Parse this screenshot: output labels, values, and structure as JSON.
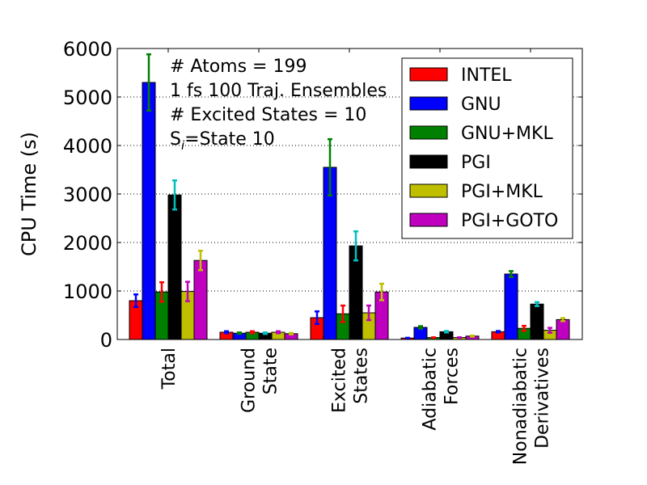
{
  "chart_data": {
    "type": "bar",
    "ylabel": "CPU Time (s)",
    "ylim": [
      0,
      6000
    ],
    "yticks": [
      0,
      1000,
      2000,
      3000,
      4000,
      5000,
      6000
    ],
    "grid": "horizontal dotted",
    "legend_position": "top-right",
    "categories": [
      [
        "Total"
      ],
      [
        "Ground",
        "State"
      ],
      [
        "Excited",
        "States"
      ],
      [
        "Adiabatic",
        "Forces"
      ],
      [
        "Nonadiabatic",
        "Derivatives"
      ]
    ],
    "series": [
      {
        "name": "INTEL",
        "color": "#ff0000",
        "errcolor": "#0000ff",
        "values": [
          800,
          150,
          450,
          30,
          160
        ],
        "errors": [
          130,
          20,
          130,
          5,
          15
        ]
      },
      {
        "name": "GNU",
        "color": "#0000ff",
        "errcolor": "#008000",
        "values": [
          5300,
          130,
          3550,
          250,
          1350
        ],
        "errors": [
          580,
          15,
          580,
          25,
          60
        ]
      },
      {
        "name": "GNU+MKL",
        "color": "#008000",
        "errcolor": "#ff0000",
        "values": [
          980,
          150,
          530,
          40,
          230
        ],
        "errors": [
          200,
          20,
          170,
          5,
          50
        ]
      },
      {
        "name": "PGI",
        "color": "#000000",
        "errcolor": "#00bfbf",
        "values": [
          2980,
          130,
          1930,
          160,
          730
        ],
        "errors": [
          300,
          15,
          300,
          15,
          40
        ]
      },
      {
        "name": "PGI+MKL",
        "color": "#bfbf00",
        "errcolor": "#bf00bf",
        "values": [
          990,
          150,
          550,
          40,
          190
        ],
        "errors": [
          200,
          20,
          150,
          5,
          50
        ]
      },
      {
        "name": "PGI+GOTO",
        "color": "#bf00bf",
        "errcolor": "#bfbf00",
        "values": [
          1630,
          120,
          980,
          70,
          410
        ],
        "errors": [
          200,
          15,
          170,
          10,
          30
        ]
      }
    ],
    "annotation_lines": [
      "# Atoms = 199",
      "1 fs 100 Traj. Ensembles",
      "# Excited States = 10"
    ],
    "annotation_state": {
      "prefix": "S",
      "subscript": "i",
      "suffix": "=State 10"
    }
  }
}
